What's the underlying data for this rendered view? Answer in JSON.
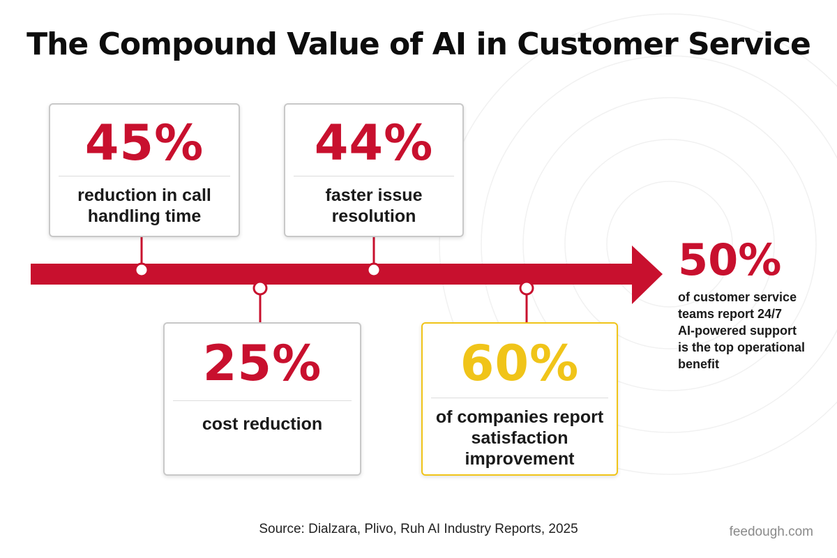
{
  "title": "The Compound Value of AI in Customer Service",
  "colors": {
    "accent_red": "#c8102e",
    "highlight_yellow": "#f0c419",
    "card_border": "#c8c8c8",
    "text_dark": "#1a1a1a",
    "brand_gray": "#8a8a8a"
  },
  "milestones": [
    {
      "value": "45%",
      "label": "reduction in call\nhandling time"
    },
    {
      "value": "44%",
      "label": "faster issue\nresolution"
    },
    {
      "value": "25%",
      "label": "cost reduction"
    },
    {
      "value": "60%",
      "label": "of companies report\nsatisfaction\nimprovement",
      "highlighted": true
    }
  ],
  "final_stat": {
    "value": "50%",
    "label": "of customer service\nteams report 24/7\nAI-powered support\nis the top operational\nbenefit"
  },
  "source": "Source: Dialzara, Plivo, Ruh AI Industry Reports, 2025",
  "brand": "feedough.com"
}
